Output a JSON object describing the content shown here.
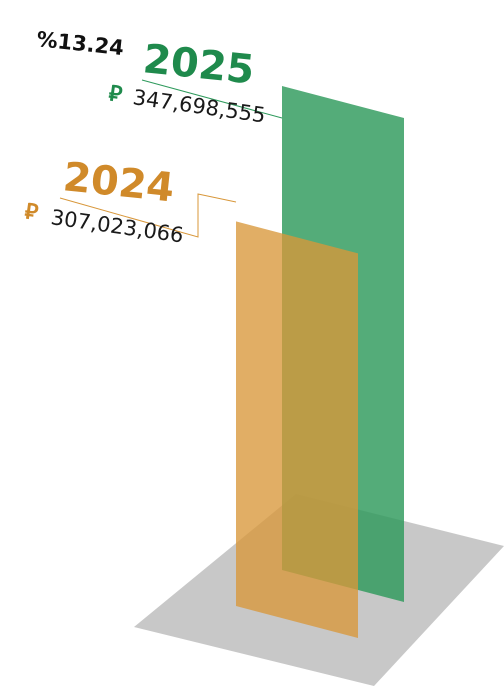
{
  "chart_data": {
    "type": "bar",
    "categories": [
      "2024",
      "2025"
    ],
    "values": [
      307023066,
      347698555
    ],
    "value_labels": [
      "307,023,066",
      "347,698,555"
    ],
    "currency_symbol": "⃁",
    "change_label": "%13.24",
    "colors": {
      "2024": "#d8973a",
      "2025": "#2e9a5c",
      "floor": "#c8c8c8"
    }
  }
}
